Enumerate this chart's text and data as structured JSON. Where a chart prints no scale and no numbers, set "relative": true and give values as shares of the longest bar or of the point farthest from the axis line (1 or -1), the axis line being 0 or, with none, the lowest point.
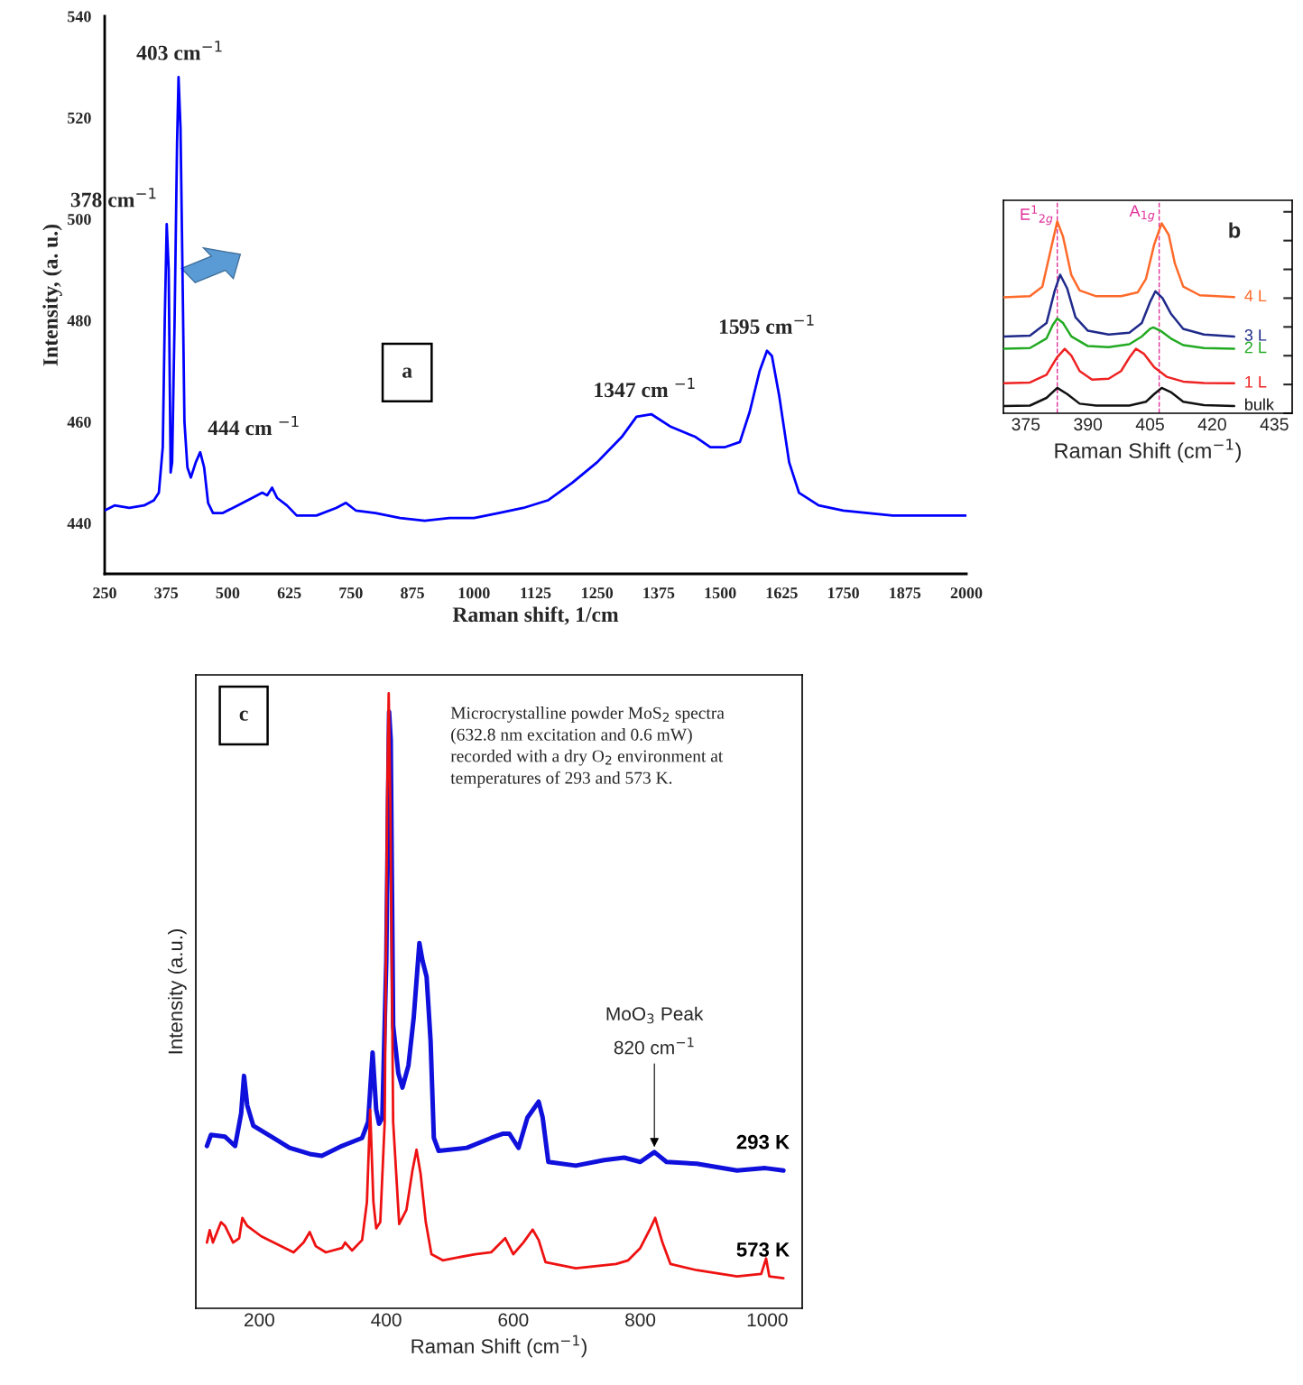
{
  "chart_data": [
    {
      "type": "line",
      "title": "a",
      "xlabel": "Raman shift, 1/cm",
      "ylabel": "Intensity, (a. u.)",
      "xlim": [
        250,
        2000
      ],
      "xticks": [
        250,
        375,
        500,
        625,
        750,
        875,
        1000,
        1125,
        1250,
        1375,
        1500,
        1625,
        1750,
        1875,
        2000
      ],
      "ylim": [
        430,
        540
      ],
      "yticks": [
        440,
        460,
        480,
        500,
        520,
        540
      ],
      "grid": false,
      "series": [
        {
          "color": "#0000ff",
          "x": [
            250,
            270,
            300,
            330,
            350,
            360,
            368,
            372,
            376,
            380,
            384,
            387,
            392,
            397,
            400,
            404,
            408,
            412,
            418,
            425,
            435,
            444,
            452,
            460,
            470,
            490,
            520,
            550,
            570,
            580,
            590,
            600,
            620,
            640,
            680,
            720,
            740,
            760,
            800,
            850,
            900,
            950,
            1000,
            1050,
            1100,
            1150,
            1200,
            1250,
            1300,
            1330,
            1360,
            1400,
            1450,
            1480,
            1510,
            1540,
            1560,
            1580,
            1595,
            1605,
            1620,
            1640,
            1660,
            1700,
            1750,
            1800,
            1850,
            1900,
            1950,
            2000
          ],
          "values": [
            442.5,
            443.5,
            443,
            443.5,
            444.5,
            446,
            455,
            480,
            499,
            490,
            450,
            452,
            480,
            515,
            528,
            518,
            490,
            460,
            451,
            449,
            452,
            454,
            451,
            444,
            442,
            442,
            443.5,
            445,
            446,
            445.5,
            447,
            445,
            443.5,
            441.5,
            441.5,
            443,
            444,
            442.5,
            442,
            441,
            440.5,
            441,
            441,
            442,
            443,
            444.5,
            448,
            452,
            457,
            461,
            461.5,
            459,
            457,
            455,
            455,
            456,
            462,
            470,
            474,
            473,
            465,
            452,
            446,
            443.5,
            442.5,
            442,
            441.5,
            441.5,
            441.5,
            441.5
          ]
        }
      ],
      "annotations": [
        {
          "text": "403 cm$^{−1}$",
          "x": 403,
          "y": 528
        },
        {
          "text": "378 cm$^{−1}$",
          "x": 378,
          "y": 499
        },
        {
          "text": "444 cm $^{−1}$",
          "x": 444,
          "y": 454
        },
        {
          "text": "1347 cm $^{−1}$",
          "x": 1347,
          "y": 461.5
        },
        {
          "text": "1595 cm$^{−1}$",
          "x": 1595,
          "y": 474
        }
      ]
    },
    {
      "type": "line",
      "title": "b",
      "xlabel": "Raman Shift (cm$^{−1}$)",
      "relative": true,
      "tick_labels": "x",
      "xlim": [
        369.6,
        439.3
      ],
      "xticks": [
        375,
        390,
        405,
        420,
        435
      ],
      "grid": false,
      "series": [
        {
          "name": "4 L",
          "color": "#ff6a2a",
          "x": [
            369.6,
            376,
            379,
            381,
            382.6,
            384,
            386,
            388,
            392,
            398,
            402,
            404,
            406,
            407.8,
            409.5,
            411,
            413,
            417,
            425.3
          ],
          "values": [
            0.604,
            0.61,
            0.66,
            0.85,
            1.0,
            0.92,
            0.72,
            0.64,
            0.61,
            0.61,
            0.63,
            0.7,
            0.88,
            0.99,
            0.93,
            0.78,
            0.66,
            0.615,
            0.605
          ]
        },
        {
          "name": "3 L",
          "color": "#1f2a8a",
          "x": [
            369.6,
            376,
            380,
            382,
            383.3,
            385,
            387,
            390,
            395,
            400,
            403,
            405,
            406.3,
            408,
            410,
            413,
            418,
            425.3
          ],
          "values": [
            0.4,
            0.405,
            0.47,
            0.64,
            0.722,
            0.65,
            0.5,
            0.43,
            0.41,
            0.42,
            0.47,
            0.58,
            0.636,
            0.6,
            0.52,
            0.44,
            0.41,
            0.4
          ]
        },
        {
          "name": "2 L",
          "color": "#22aa22",
          "x": [
            369.6,
            376,
            380,
            381.5,
            382.6,
            384,
            386,
            390,
            395,
            400,
            403,
            405,
            405.8,
            407.5,
            410,
            413,
            418,
            425.3
          ],
          "values": [
            0.336,
            0.34,
            0.39,
            0.46,
            0.494,
            0.47,
            0.4,
            0.35,
            0.345,
            0.36,
            0.4,
            0.44,
            0.447,
            0.43,
            0.39,
            0.355,
            0.34,
            0.336
          ]
        },
        {
          "name": "1 L",
          "color": "#ee2222",
          "x": [
            369.6,
            376,
            380,
            382.5,
            384.4,
            386,
            388,
            391,
            395,
            398,
            400,
            401.6,
            403.5,
            406,
            409,
            413,
            418,
            425.3
          ],
          "values": [
            0.156,
            0.16,
            0.2,
            0.29,
            0.336,
            0.3,
            0.22,
            0.175,
            0.18,
            0.22,
            0.29,
            0.336,
            0.31,
            0.24,
            0.19,
            0.165,
            0.158,
            0.156
          ]
        },
        {
          "name": "bulk",
          "color": "#111111",
          "x": [
            369.6,
            376,
            380,
            382.6,
            385,
            388,
            392,
            400,
            404,
            406,
            407.8,
            410,
            413,
            418,
            425.3
          ],
          "values": [
            0.038,
            0.04,
            0.08,
            0.132,
            0.1,
            0.05,
            0.04,
            0.04,
            0.06,
            0.1,
            0.132,
            0.11,
            0.06,
            0.042,
            0.038
          ]
        }
      ],
      "ref_lines": [
        {
          "axis": "x",
          "value": 382.6,
          "label": "E$^{1}$$_{2g}$",
          "color": "#e0309a",
          "line_style": "dashed"
        },
        {
          "axis": "x",
          "value": 407.2,
          "label": "A$_{1g}$",
          "color": "#e0309a",
          "line_style": "dashed"
        }
      ]
    },
    {
      "type": "line",
      "title": "c",
      "xlabel": "Raman Shift (cm$^{−1}$)",
      "ylabel": "Intensity (a.u.)",
      "relative": true,
      "tick_labels": "x",
      "xlim": [
        100,
        1055
      ],
      "xticks": [
        200,
        400,
        600,
        800,
        1000
      ],
      "grid": false,
      "series": [
        {
          "name": "293 K",
          "color": "#1010dd",
          "x": [
            117.5,
            123.8,
            146,
            161.9,
            171.4,
            175.9,
            181,
            190.5,
            222.2,
            247.6,
            279.4,
            298.4,
            330.2,
            361.9,
            371.4,
            378.4,
            384.1,
            388.6,
            393.7,
            400,
            404.4,
            407,
            410.8,
            419,
            425.4,
            434.9,
            443.2,
            452.1,
            457.1,
            463.5,
            469.8,
            474.9,
            482.5,
            527,
            565.1,
            584.1,
            593.7,
            600,
            608.3,
            622.2,
            640,
            646.3,
            655.2,
            698.4,
            742.9,
            774.6,
            800,
            822.2,
            841.3,
            888.9,
            952.4,
            996.8,
            1025.4
          ],
          "values": [
            0.264,
            0.282,
            0.279,
            0.264,
            0.317,
            0.378,
            0.33,
            0.297,
            0.277,
            0.261,
            0.251,
            0.248,
            0.264,
            0.277,
            0.303,
            0.416,
            0.323,
            0.3,
            0.31,
            0.565,
            0.97,
            0.924,
            0.46,
            0.382,
            0.359,
            0.395,
            0.473,
            0.594,
            0.565,
            0.539,
            0.434,
            0.277,
            0.256,
            0.261,
            0.277,
            0.284,
            0.284,
            0.274,
            0.261,
            0.31,
            0.336,
            0.31,
            0.238,
            0.232,
            0.241,
            0.245,
            0.238,
            0.254,
            0.238,
            0.235,
            0.224,
            0.228,
            0.224
          ]
        },
        {
          "name": "573 K",
          "color": "#ee1111",
          "x": [
            117.5,
            121.9,
            127,
            139.7,
            146,
            158.7,
            168.3,
            173.3,
            181,
            203.2,
            254,
            269.8,
            279.4,
            288.9,
            304.8,
            330.2,
            335.2,
            346,
            361.9,
            369.5,
            374.6,
            379.7,
            384.1,
            390.5,
            397.5,
            401.3,
            403.8,
            406.3,
            410.8,
            420.3,
            431.7,
            441.3,
            447.6,
            454,
            462.2,
            471.1,
            488.9,
            539.7,
            565.1,
            587.3,
            593.7,
            600,
            615.9,
            630.5,
            640,
            650.8,
            698.4,
            761.9,
            781,
            800,
            815.9,
            823.5,
            834.9,
            847.6,
            888.9,
            952.4,
            990.5,
            998.1,
            1003.2,
            1025.4
          ],
          "values": [
            0.107,
            0.127,
            0.107,
            0.14,
            0.134,
            0.107,
            0.114,
            0.147,
            0.134,
            0.117,
            0.091,
            0.107,
            0.124,
            0.101,
            0.091,
            0.098,
            0.107,
            0.094,
            0.111,
            0.173,
            0.323,
            0.173,
            0.13,
            0.14,
            0.303,
            0.826,
            1.0,
            0.826,
            0.303,
            0.137,
            0.16,
            0.225,
            0.258,
            0.219,
            0.14,
            0.088,
            0.078,
            0.088,
            0.091,
            0.114,
            0.101,
            0.088,
            0.107,
            0.128,
            0.111,
            0.075,
            0.065,
            0.072,
            0.078,
            0.098,
            0.13,
            0.147,
            0.107,
            0.072,
            0.062,
            0.052,
            0.056,
            0.081,
            0.052,
            0.049
          ]
        }
      ],
      "annotations": [
        "Microcrystalline powder MoS$_{2}$ spectra\n(632.8 nm excitation and 0.6 mW)\nrecorded with a dry O$_{2}$ environment at\ntemperatures of 293 and 573 K.",
        {
          "text": "MoO$_{3}$ Peak\n820 cm$^{−1}$",
          "x": 822.2,
          "y": 0.254
        }
      ]
    }
  ]
}
